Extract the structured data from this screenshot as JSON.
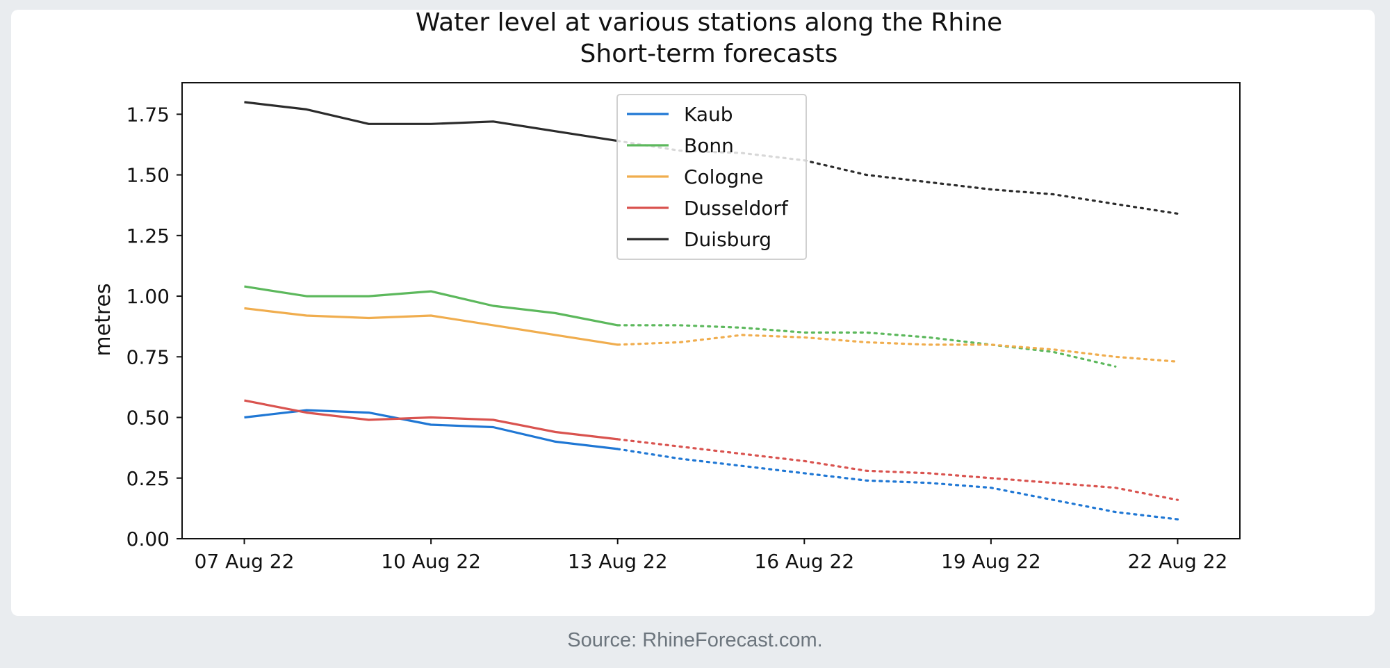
{
  "caption": "Source: RhineForecast.com.",
  "chart_data": {
    "type": "line",
    "title": "Water level at various stations along the Rhine",
    "subtitle": "Short-term forecasts",
    "xlabel": "",
    "ylabel": "metres",
    "xlim": [
      "2022-08-06",
      "2022-08-23"
    ],
    "ylim": [
      0,
      1.88
    ],
    "x_ticks": [
      {
        "date": "2022-08-07",
        "label": "07 Aug 22"
      },
      {
        "date": "2022-08-10",
        "label": "10 Aug 22"
      },
      {
        "date": "2022-08-13",
        "label": "13 Aug 22"
      },
      {
        "date": "2022-08-16",
        "label": "16 Aug 22"
      },
      {
        "date": "2022-08-19",
        "label": "19 Aug 22"
      },
      {
        "date": "2022-08-22",
        "label": "22 Aug 22"
      }
    ],
    "y_ticks": [
      {
        "value": 0,
        "label": "0.00"
      },
      {
        "value": 0.25,
        "label": "0.25"
      },
      {
        "value": 0.5,
        "label": "0.50"
      },
      {
        "value": 0.75,
        "label": "0.75"
      },
      {
        "value": 1.0,
        "label": "1.00"
      },
      {
        "value": 1.25,
        "label": "1.25"
      },
      {
        "value": 1.5,
        "label": "1.50"
      },
      {
        "value": 1.75,
        "label": "1.75"
      }
    ],
    "grid": false,
    "legend_position": "top-center",
    "forecast_style": "dotted",
    "series": [
      {
        "name": "Kaub",
        "color": "#1f77d4",
        "observed": [
          [
            "2022-08-07",
            0.5
          ],
          [
            "2022-08-08",
            0.53
          ],
          [
            "2022-08-09",
            0.52
          ],
          [
            "2022-08-10",
            0.47
          ],
          [
            "2022-08-11",
            0.46
          ],
          [
            "2022-08-12",
            0.4
          ],
          [
            "2022-08-13",
            0.37
          ]
        ],
        "forecast": [
          [
            "2022-08-13",
            0.37
          ],
          [
            "2022-08-14",
            0.33
          ],
          [
            "2022-08-15",
            0.3
          ],
          [
            "2022-08-16",
            0.27
          ],
          [
            "2022-08-17",
            0.24
          ],
          [
            "2022-08-18",
            0.23
          ],
          [
            "2022-08-19",
            0.21
          ],
          [
            "2022-08-20",
            0.16
          ],
          [
            "2022-08-21",
            0.11
          ],
          [
            "2022-08-22",
            0.08
          ]
        ]
      },
      {
        "name": "Bonn",
        "color": "#5cb85c",
        "observed": [
          [
            "2022-08-07",
            1.04
          ],
          [
            "2022-08-08",
            1.0
          ],
          [
            "2022-08-09",
            1.0
          ],
          [
            "2022-08-10",
            1.02
          ],
          [
            "2022-08-11",
            0.96
          ],
          [
            "2022-08-12",
            0.93
          ],
          [
            "2022-08-13",
            0.88
          ]
        ],
        "forecast": [
          [
            "2022-08-13",
            0.88
          ],
          [
            "2022-08-14",
            0.88
          ],
          [
            "2022-08-15",
            0.87
          ],
          [
            "2022-08-16",
            0.85
          ],
          [
            "2022-08-17",
            0.85
          ],
          [
            "2022-08-18",
            0.83
          ],
          [
            "2022-08-19",
            0.8
          ],
          [
            "2022-08-20",
            0.77
          ],
          [
            "2022-08-21",
            0.71
          ]
        ]
      },
      {
        "name": "Cologne",
        "color": "#f0ad4e",
        "observed": [
          [
            "2022-08-07",
            0.95
          ],
          [
            "2022-08-08",
            0.92
          ],
          [
            "2022-08-09",
            0.91
          ],
          [
            "2022-08-10",
            0.92
          ],
          [
            "2022-08-11",
            0.88
          ],
          [
            "2022-08-12",
            0.84
          ],
          [
            "2022-08-13",
            0.8
          ]
        ],
        "forecast": [
          [
            "2022-08-13",
            0.8
          ],
          [
            "2022-08-14",
            0.81
          ],
          [
            "2022-08-15",
            0.84
          ],
          [
            "2022-08-16",
            0.83
          ],
          [
            "2022-08-17",
            0.81
          ],
          [
            "2022-08-18",
            0.8
          ],
          [
            "2022-08-19",
            0.8
          ],
          [
            "2022-08-20",
            0.78
          ],
          [
            "2022-08-21",
            0.75
          ],
          [
            "2022-08-22",
            0.73
          ]
        ]
      },
      {
        "name": "Dusseldorf",
        "color": "#d9534f",
        "observed": [
          [
            "2022-08-07",
            0.57
          ],
          [
            "2022-08-08",
            0.52
          ],
          [
            "2022-08-09",
            0.49
          ],
          [
            "2022-08-10",
            0.5
          ],
          [
            "2022-08-11",
            0.49
          ],
          [
            "2022-08-12",
            0.44
          ],
          [
            "2022-08-13",
            0.41
          ]
        ],
        "forecast": [
          [
            "2022-08-13",
            0.41
          ],
          [
            "2022-08-14",
            0.38
          ],
          [
            "2022-08-15",
            0.35
          ],
          [
            "2022-08-16",
            0.32
          ],
          [
            "2022-08-17",
            0.28
          ],
          [
            "2022-08-18",
            0.27
          ],
          [
            "2022-08-19",
            0.25
          ],
          [
            "2022-08-20",
            0.23
          ],
          [
            "2022-08-21",
            0.21
          ],
          [
            "2022-08-22",
            0.16
          ]
        ]
      },
      {
        "name": "Duisburg",
        "color": "#2b2b2b",
        "observed": [
          [
            "2022-08-07",
            1.8
          ],
          [
            "2022-08-08",
            1.77
          ],
          [
            "2022-08-09",
            1.71
          ],
          [
            "2022-08-10",
            1.71
          ],
          [
            "2022-08-11",
            1.72
          ],
          [
            "2022-08-12",
            1.68
          ],
          [
            "2022-08-13",
            1.64
          ]
        ],
        "forecast": [
          [
            "2022-08-13",
            1.64
          ],
          [
            "2022-08-14",
            1.6
          ],
          [
            "2022-08-15",
            1.59
          ],
          [
            "2022-08-16",
            1.56
          ],
          [
            "2022-08-17",
            1.5
          ],
          [
            "2022-08-18",
            1.47
          ],
          [
            "2022-08-19",
            1.44
          ],
          [
            "2022-08-20",
            1.42
          ],
          [
            "2022-08-21",
            1.38
          ],
          [
            "2022-08-22",
            1.34
          ]
        ]
      }
    ]
  }
}
